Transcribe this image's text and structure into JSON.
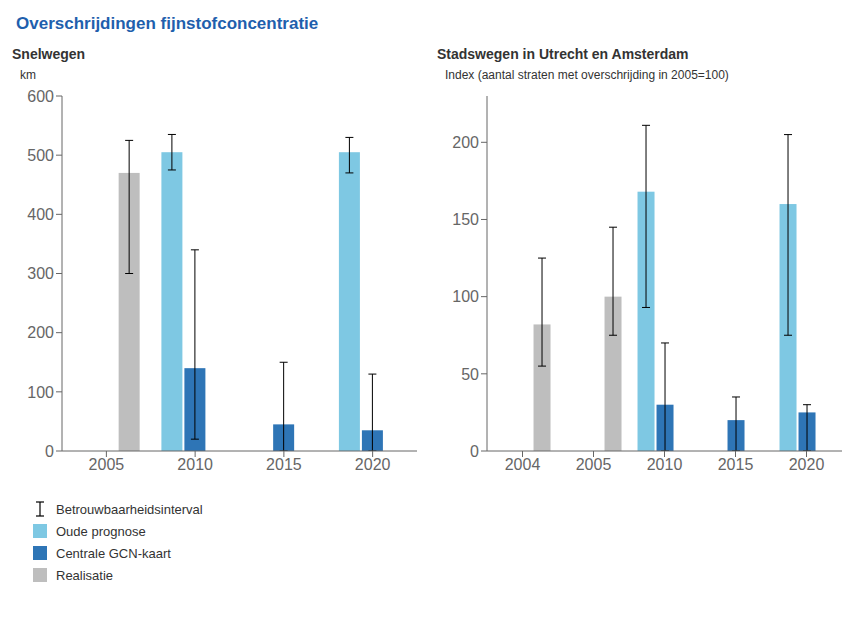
{
  "title": "Overschrijdingen fijnstofconcentratie",
  "error_bar_label": "Betrouwbaarheidsinterval",
  "legend": "lower left",
  "chart_data": [
    {
      "type": "bar",
      "title": "Snelwegen",
      "y_label": "km",
      "categories": [
        "2005",
        "2010",
        "2015",
        "2020"
      ],
      "series": [
        {
          "name": "Oude prognose",
          "color": "#7EC8E3",
          "values": [
            null,
            505,
            null,
            505
          ],
          "error_minus": [
            null,
            30,
            null,
            35
          ],
          "error_plus": [
            null,
            30,
            null,
            25
          ]
        },
        {
          "name": "Centrale GCN-kaart",
          "color": "#2E75B6",
          "values": [
            null,
            140,
            45,
            35
          ],
          "error_minus": [
            null,
            120,
            45,
            35
          ],
          "error_plus": [
            null,
            200,
            105,
            95
          ]
        },
        {
          "name": "Realisatie",
          "color": "#BEBEBE",
          "values": [
            470,
            null,
            null,
            null
          ],
          "error_minus": [
            170,
            null,
            null,
            null
          ],
          "error_plus": [
            55,
            null,
            null,
            null
          ]
        }
      ],
      "ylim": [
        0,
        600
      ],
      "yticks": [
        0,
        100,
        200,
        300,
        400,
        500,
        600
      ]
    },
    {
      "type": "bar",
      "title": "Stadswegen in Utrecht en Amsterdam",
      "y_label": "Index (aantal straten met overschrijding in 2005=100)",
      "categories": [
        "2004",
        "2005",
        "2010",
        "2015",
        "2020"
      ],
      "series": [
        {
          "name": "Oude prognose",
          "color": "#7EC8E3",
          "values": [
            null,
            null,
            168,
            null,
            160
          ],
          "error_minus": [
            null,
            null,
            75,
            null,
            85
          ],
          "error_plus": [
            null,
            null,
            43,
            null,
            45
          ]
        },
        {
          "name": "Centrale GCN-kaart",
          "color": "#2E75B6",
          "values": [
            null,
            null,
            30,
            20,
            25
          ],
          "error_minus": [
            null,
            null,
            30,
            20,
            25
          ],
          "error_plus": [
            null,
            null,
            40,
            15,
            5
          ]
        },
        {
          "name": "Realisatie",
          "color": "#BEBEBE",
          "values": [
            82,
            100,
            null,
            null,
            null
          ],
          "error_minus": [
            27,
            25,
            null,
            null,
            null
          ],
          "error_plus": [
            43,
            45,
            null,
            null,
            null
          ]
        }
      ],
      "ylim": [
        0,
        230
      ],
      "yticks": [
        0,
        50,
        100,
        150,
        200
      ]
    }
  ]
}
